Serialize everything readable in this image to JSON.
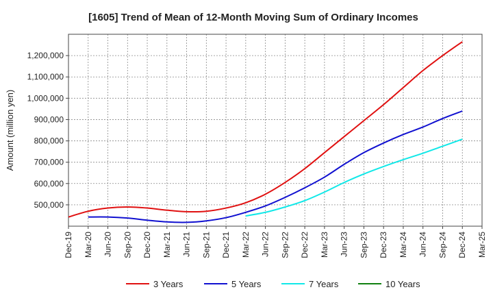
{
  "chart_data": {
    "type": "line",
    "title": "[1605]  Trend of Mean of 12-Month Moving Sum of Ordinary Incomes",
    "xlabel": "",
    "ylabel": "Amount (million yen)",
    "ylim": [
      400000,
      1300000
    ],
    "grid": true,
    "categories": [
      "Dec-19",
      "Mar-20",
      "Jun-20",
      "Sep-20",
      "Dec-20",
      "Mar-21",
      "Jun-21",
      "Sep-21",
      "Dec-21",
      "Mar-22",
      "Jun-22",
      "Sep-22",
      "Dec-22",
      "Mar-23",
      "Jun-23",
      "Sep-23",
      "Dec-23",
      "Mar-24",
      "Jun-24",
      "Sep-24",
      "Dec-24",
      "Mar-25"
    ],
    "yticks": [
      500000,
      600000,
      700000,
      800000,
      900000,
      1000000,
      1100000,
      1200000
    ],
    "ytick_labels": [
      "500,000",
      "600,000",
      "700,000",
      "800,000",
      "900,000",
      "1,000,000",
      "1,100,000",
      "1,200,000"
    ],
    "series": [
      {
        "name": "3 Years",
        "color": "#e01010",
        "values": [
          443000,
          470000,
          485000,
          490000,
          485000,
          475000,
          468000,
          470000,
          485000,
          510000,
          550000,
          605000,
          670000,
          745000,
          820000,
          895000,
          970000,
          1050000,
          1130000,
          1200000,
          1265000,
          null
        ]
      },
      {
        "name": "5 Years",
        "color": "#1010d0",
        "values": [
          null,
          443000,
          443000,
          438000,
          428000,
          420000,
          418000,
          425000,
          440000,
          465000,
          495000,
          535000,
          580000,
          630000,
          690000,
          745000,
          790000,
          830000,
          865000,
          905000,
          940000,
          null
        ]
      },
      {
        "name": "7 Years",
        "color": "#10e8e8",
        "values": [
          null,
          null,
          null,
          null,
          null,
          null,
          null,
          null,
          null,
          448000,
          465000,
          490000,
          520000,
          560000,
          605000,
          645000,
          680000,
          712000,
          742000,
          775000,
          808000,
          null
        ]
      },
      {
        "name": "10 Years",
        "color": "#108010",
        "values": [
          null,
          null,
          null,
          null,
          null,
          null,
          null,
          null,
          null,
          null,
          null,
          null,
          null,
          null,
          null,
          null,
          null,
          null,
          null,
          null,
          null,
          null
        ]
      }
    ],
    "legend_position": "bottom"
  }
}
